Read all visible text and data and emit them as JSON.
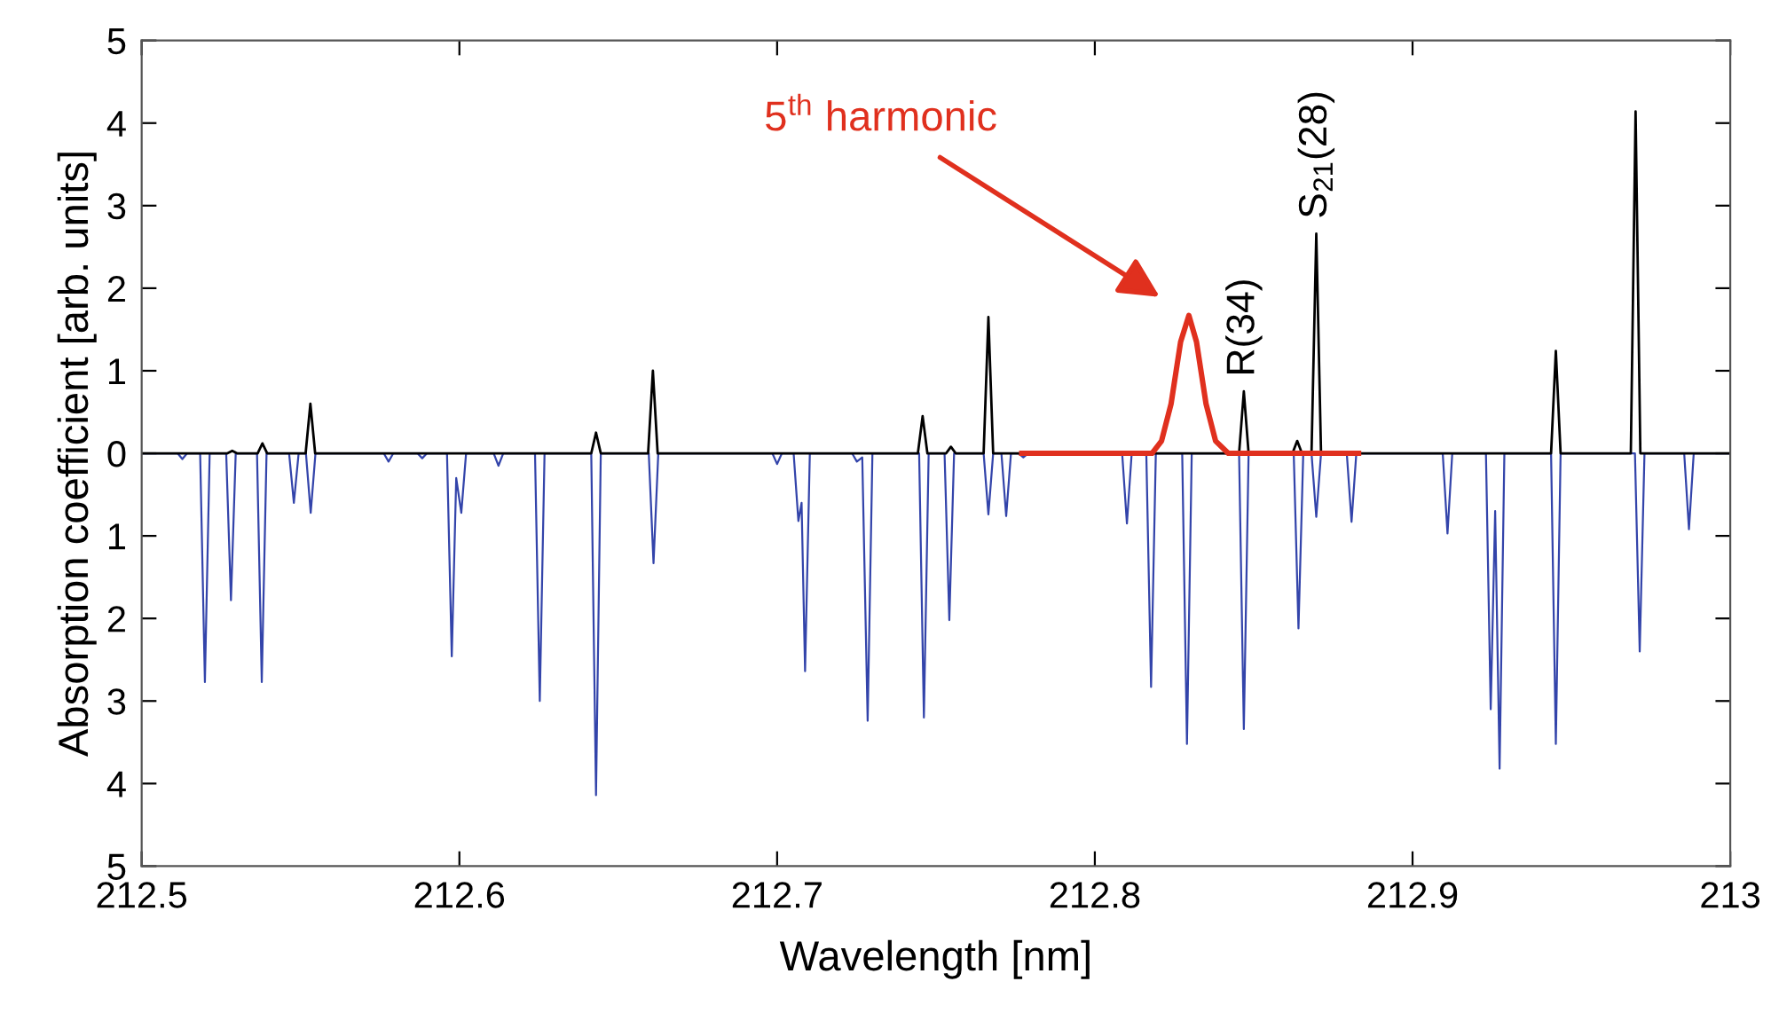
{
  "chart_data": {
    "type": "line",
    "xlabel": "Wavelength [nm]",
    "ylabel": "Absorption coefficient [arb. units]",
    "xlim": [
      212.5,
      213
    ],
    "xticks": [
      212.5,
      212.6,
      212.7,
      212.8,
      212.9,
      213
    ],
    "ylim": [
      -5,
      5
    ],
    "yticks": [
      {
        "value": -5,
        "label": "5"
      },
      {
        "value": -4,
        "label": "4"
      },
      {
        "value": -3,
        "label": "3"
      },
      {
        "value": -2,
        "label": "2"
      },
      {
        "value": -1,
        "label": "1"
      },
      0,
      1,
      2,
      3,
      4,
      5
    ],
    "grid": false,
    "line_style": "solid",
    "marker": "none",
    "series": [
      {
        "color": "#3344aa",
        "x": [
          212.5,
          212.5113,
          212.5128,
          212.5143,
          212.5184,
          212.5199,
          212.5214,
          212.5266,
          212.5281,
          212.5296,
          212.5363,
          212.5378,
          212.5393,
          212.5464,
          212.5479,
          212.5494,
          212.5517,
          212.5532,
          212.5547,
          212.5762,
          212.5777,
          212.5792,
          212.5868,
          212.5883,
          212.5898,
          212.5961,
          212.5976,
          212.599,
          212.6006,
          212.6021,
          212.6108,
          212.6123,
          212.6138,
          212.6238,
          212.6253,
          212.6268,
          212.6415,
          212.643,
          212.6445,
          212.6596,
          212.6611,
          212.6626,
          212.6985,
          212.7,
          212.7015,
          212.7052,
          212.7067,
          212.7077,
          212.7088,
          212.7103,
          212.7236,
          212.7251,
          212.7268,
          212.7285,
          212.73,
          212.7447,
          212.7462,
          212.7477,
          212.7527,
          212.7542,
          212.7557,
          212.765,
          212.7665,
          212.768,
          212.7706,
          212.7721,
          212.7736,
          212.776,
          212.7775,
          212.779,
          212.8086,
          212.8101,
          212.8116,
          212.8162,
          212.8177,
          212.8192,
          212.8275,
          212.829,
          212.8305,
          212.8454,
          212.8469,
          212.8484,
          212.8626,
          212.8641,
          212.8656,
          212.8682,
          212.8697,
          212.8712,
          212.8793,
          212.8808,
          212.8823,
          212.9095,
          212.911,
          212.9125,
          212.9231,
          212.9246,
          212.926,
          212.9274,
          212.9289,
          212.9436,
          212.9451,
          212.9466,
          212.97,
          212.9715,
          212.973,
          212.9855,
          212.987,
          212.9885,
          213
        ],
        "values": [
          0,
          0,
          -0.07,
          0,
          0,
          -2.77,
          0,
          0,
          -1.78,
          0,
          0,
          -2.77,
          0,
          0,
          -0.6,
          0,
          0,
          -0.72,
          0,
          0,
          -0.1,
          0,
          0,
          -0.06,
          0,
          0,
          -2.46,
          -0.3,
          -0.72,
          0,
          0,
          -0.15,
          0,
          0,
          -3.0,
          0,
          0,
          -4.14,
          0,
          0,
          -1.33,
          0,
          0,
          -0.13,
          0,
          0,
          -0.82,
          -0.6,
          -2.64,
          0,
          0,
          -0.1,
          -0.05,
          -3.24,
          0,
          0,
          -3.2,
          0,
          0,
          -2.02,
          0,
          0,
          -0.74,
          0,
          0,
          -0.76,
          0,
          0,
          -0.05,
          0,
          0,
          -0.85,
          0,
          0,
          -2.83,
          0,
          0,
          -3.52,
          0,
          0,
          -3.34,
          0,
          0,
          -2.12,
          0,
          0,
          -0.77,
          0,
          0,
          -0.83,
          0,
          0,
          -0.97,
          0,
          0,
          -3.1,
          -0.7,
          -3.82,
          0,
          0,
          -3.52,
          0,
          0,
          -2.4,
          0,
          0,
          -0.92,
          0,
          0
        ]
      },
      {
        "color": "#000000",
        "x": [
          212.5,
          212.527,
          212.5285,
          212.53,
          212.5365,
          212.538,
          212.5395,
          212.5516,
          212.5531,
          212.5546,
          212.6415,
          212.643,
          212.6445,
          212.6594,
          212.6609,
          212.6624,
          212.7443,
          212.7458,
          212.7473,
          212.7532,
          212.7547,
          212.7562,
          212.765,
          212.7665,
          212.768,
          212.8454,
          212.8469,
          212.8484,
          212.8622,
          212.8637,
          212.8652,
          212.8682,
          212.8697,
          212.8712,
          212.9436,
          212.9451,
          212.9466,
          212.9687,
          212.9702,
          212.9717,
          213
        ],
        "values": [
          0,
          0,
          0.03,
          0,
          0,
          0.12,
          0,
          0,
          0.6,
          0,
          0,
          0.25,
          0,
          0,
          1.0,
          0,
          0,
          0.45,
          0,
          0,
          0.08,
          0,
          0,
          1.65,
          0,
          0,
          0.75,
          0,
          0,
          0.15,
          0,
          0,
          2.66,
          0,
          0,
          1.24,
          0,
          0,
          4.14,
          0,
          0
        ]
      },
      {
        "color": "#e0301e",
        "x": [
          212.777,
          212.818,
          212.821,
          212.824,
          212.827,
          212.8296,
          212.832,
          212.835,
          212.838,
          212.842,
          212.883
        ],
        "values": [
          0,
          0,
          0.15,
          0.6,
          1.35,
          1.67,
          1.35,
          0.6,
          0.15,
          0,
          0
        ]
      }
    ],
    "annotations": [
      "5$^{th}$ harmonic",
      {
        "text": "R(34)",
        "x": 212.8469,
        "y": 0.75
      },
      {
        "text": "S$_{21}$(28)",
        "x": 212.8697,
        "y": 2.66
      }
    ]
  }
}
